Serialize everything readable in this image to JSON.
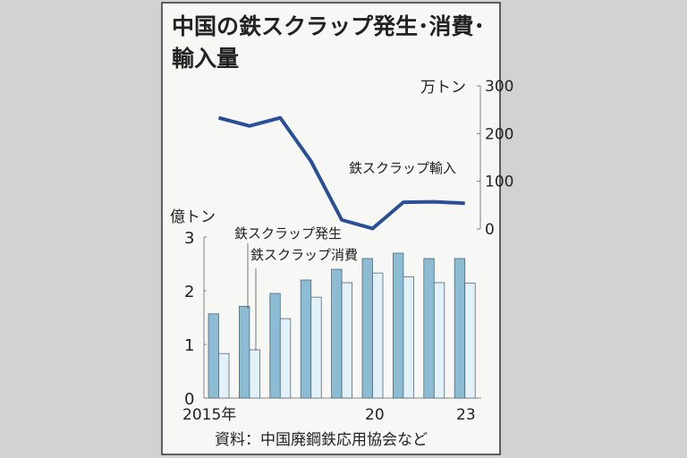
{
  "chart_data": [
    {
      "type": "line",
      "title_line1": "中国の鉄スクラップ発生･消費･",
      "title_line2": "輸入量",
      "unit_label": "万トン",
      "axis_side": "right",
      "yticks": [
        "300",
        "200",
        "100",
        "0"
      ],
      "ylim": [
        0,
        300
      ],
      "x": [
        2015,
        2016,
        2017,
        2018,
        2019,
        2020,
        2021,
        2022,
        2023
      ],
      "series": [
        {
          "name": "鉄スクラップ輸入",
          "values": [
            233,
            216,
            233,
            142,
            19,
            1,
            56,
            57,
            54
          ],
          "color": "#2a4f96"
        }
      ]
    },
    {
      "type": "bar",
      "unit_label": "億トン",
      "axis_side": "left",
      "yticks": [
        "3",
        "2",
        "1",
        "0"
      ],
      "ylim": [
        0,
        3
      ],
      "categories": [
        2015,
        2016,
        2017,
        2018,
        2019,
        2020,
        2021,
        2022,
        2023
      ],
      "xtick_labels": [
        "2015年",
        "20",
        "23"
      ],
      "series": [
        {
          "name": "鉄スクラップ発生",
          "values": [
            1.57,
            1.71,
            1.95,
            2.2,
            2.4,
            2.6,
            2.7,
            2.6,
            2.6
          ],
          "color": "#8bbcd3"
        },
        {
          "name": "鉄スクラップ消費",
          "values": [
            0.83,
            0.9,
            1.48,
            1.88,
            2.15,
            2.33,
            2.26,
            2.15,
            2.14
          ],
          "color": "#e2f0f7"
        }
      ],
      "source": "資料：中国廃鋼鉄応用協会など"
    }
  ]
}
